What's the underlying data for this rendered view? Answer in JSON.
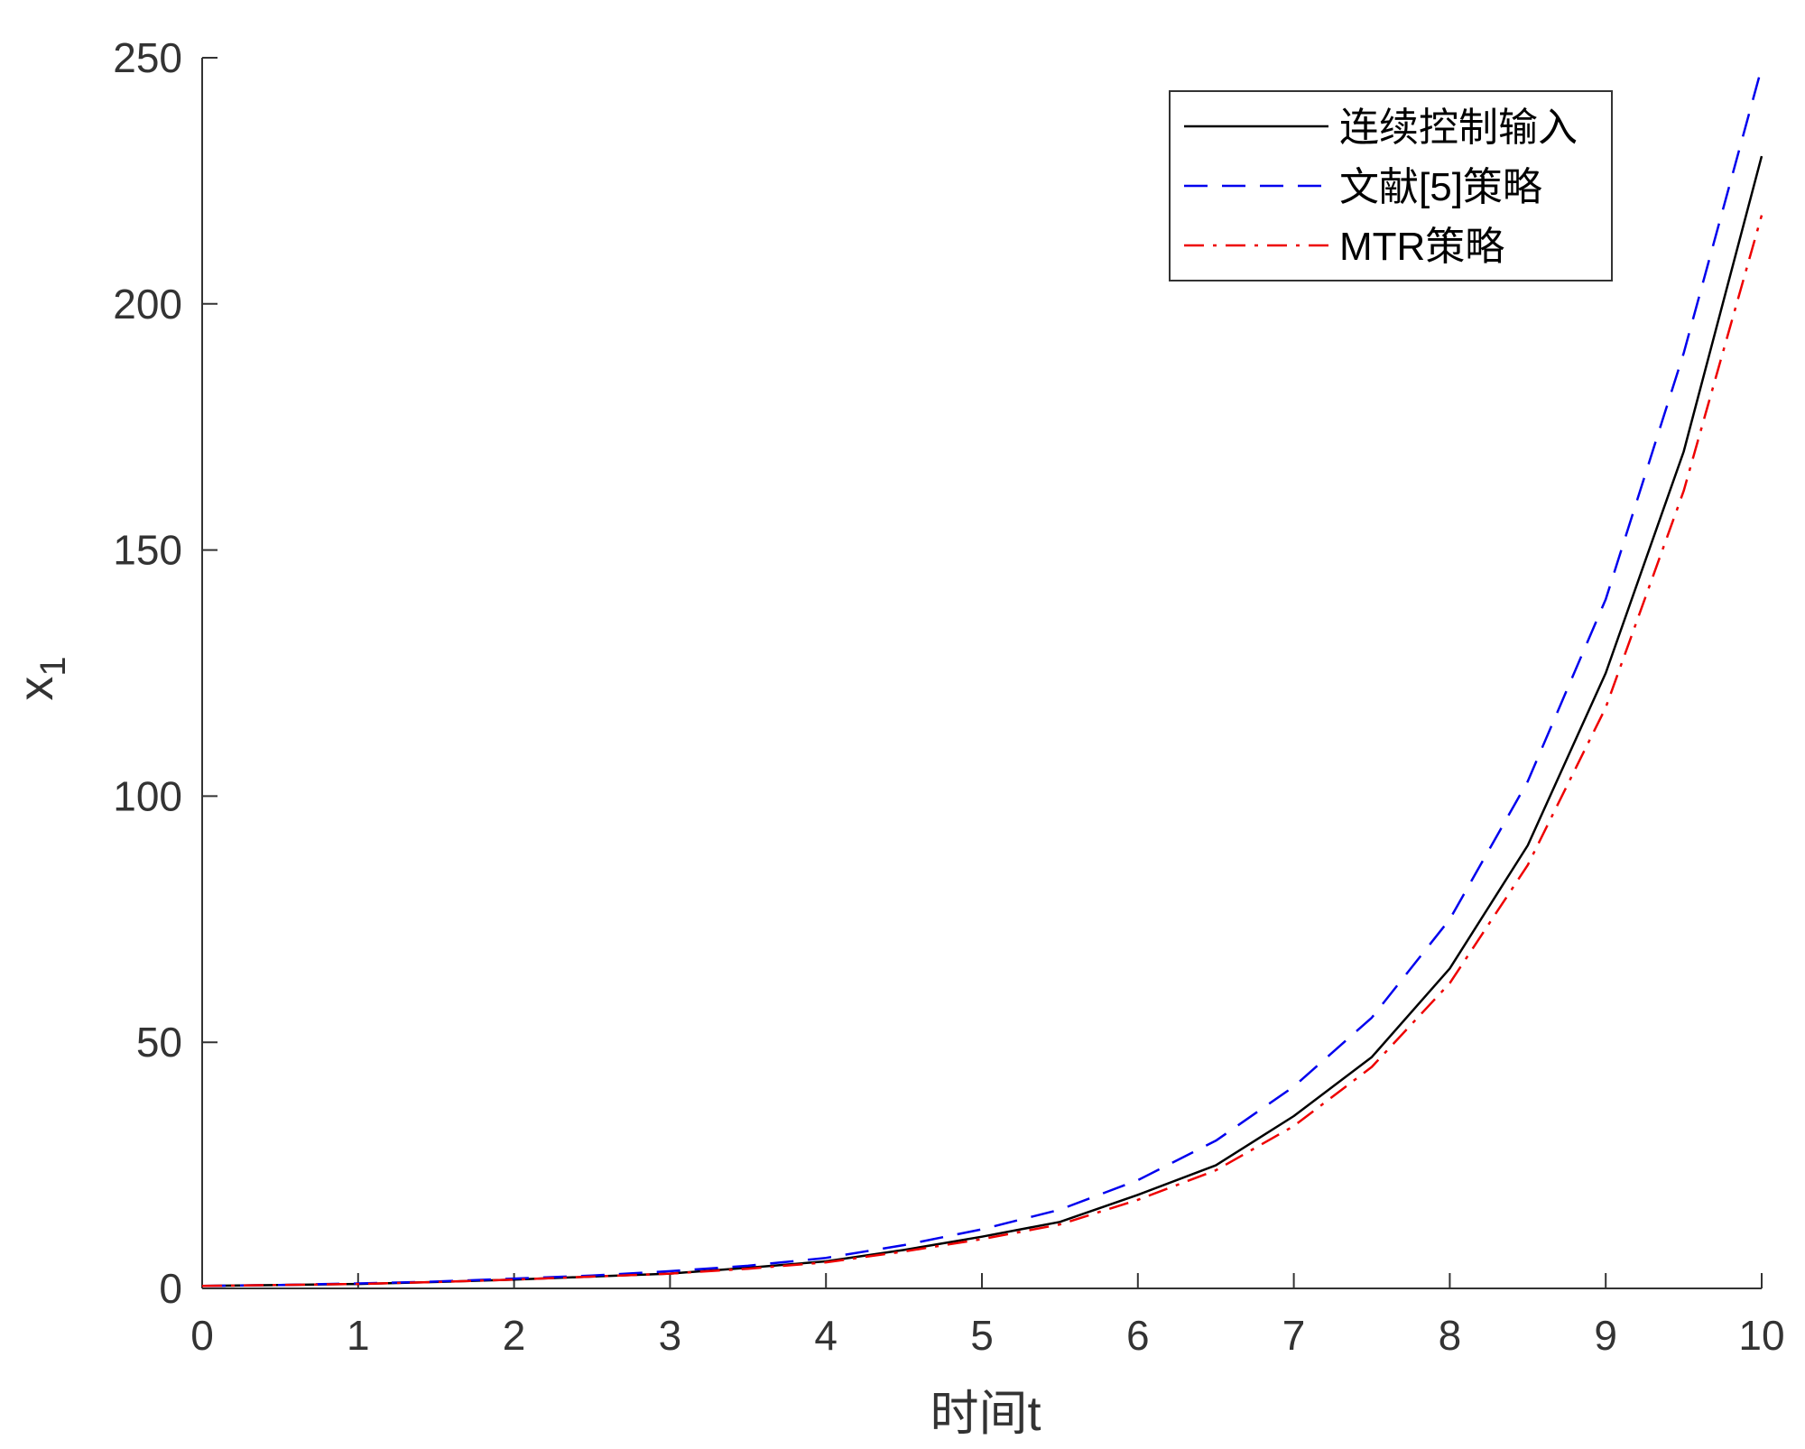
{
  "chart_data": {
    "type": "line",
    "xlabel": "时间t",
    "ylabel": "x",
    "ylabel_subscript": "1",
    "xlim": [
      0,
      10
    ],
    "ylim": [
      0,
      250
    ],
    "xticks": [
      0,
      1,
      2,
      3,
      4,
      5,
      6,
      7,
      8,
      9,
      10
    ],
    "yticks": [
      0,
      50,
      100,
      150,
      200,
      250
    ],
    "grid": false,
    "legend_position": "top-right",
    "x": [
      0,
      0.5,
      1,
      1.5,
      2,
      2.5,
      3,
      3.5,
      4,
      4.5,
      5,
      5.5,
      6,
      6.5,
      7,
      7.5,
      8,
      8.5,
      9,
      9.5,
      10
    ],
    "series": [
      {
        "name": "连续控制输入",
        "color": "#000000",
        "dash": "solid",
        "values": [
          0.5,
          0.7,
          0.9,
          1.3,
          1.8,
          2.4,
          3.0,
          4.2,
          5.5,
          7.8,
          10.5,
          13.5,
          19.0,
          25.0,
          35.0,
          47.0,
          65.0,
          90.0,
          125.0,
          170.0,
          230.0
        ]
      },
      {
        "name": "文献[5]策略",
        "color": "#0000ee",
        "dash": "dashed",
        "values": [
          0.5,
          0.7,
          1.0,
          1.4,
          2.0,
          2.6,
          3.5,
          4.6,
          6.2,
          8.8,
          12.0,
          16.0,
          22.0,
          30.0,
          41.0,
          55.0,
          75.0,
          103.0,
          140.0,
          190.0,
          248.0
        ]
      },
      {
        "name": "MTR策略",
        "color": "#ee0000",
        "dash": "dashdot",
        "values": [
          0.5,
          0.7,
          0.9,
          1.3,
          1.8,
          2.4,
          3.0,
          4.0,
          5.3,
          7.5,
          10.0,
          13.0,
          18.0,
          24.0,
          33.0,
          45.0,
          62.0,
          86.0,
          118.0,
          162.0,
          218.0
        ]
      }
    ]
  }
}
